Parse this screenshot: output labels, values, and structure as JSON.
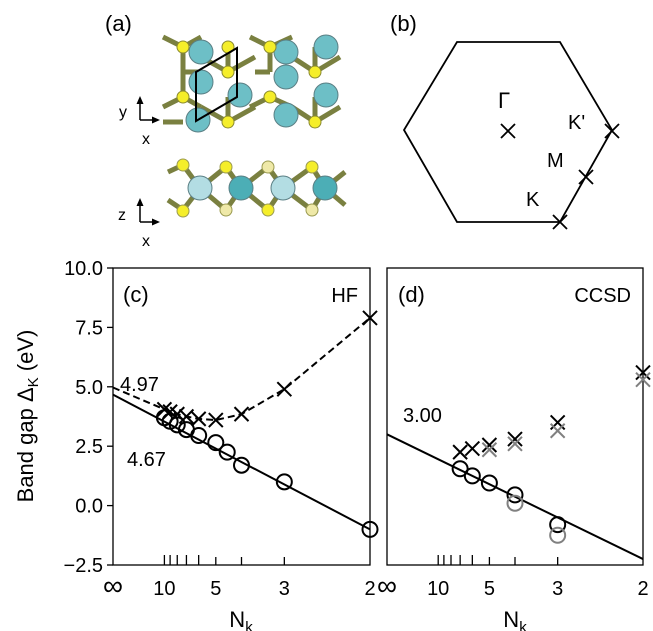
{
  "panels": {
    "a": {
      "label": "(a)",
      "axes_top": {
        "v": "y",
        "h": "x"
      },
      "axes_bottom": {
        "v": "z",
        "h": "x"
      },
      "colors": {
        "bond": "#7a8040",
        "s": "#f5ee2a",
        "s_light": "#efe9a8",
        "teal": "#6dbfc6",
        "teal_light": "#b3dde3",
        "teal_dark": "#4caeb6"
      }
    },
    "b": {
      "label": "(b)",
      "points": {
        "gamma": "Γ",
        "kprime": "K'",
        "m": "M",
        "k": "K"
      }
    }
  },
  "chart_data": [
    {
      "panel": "(c)",
      "type": "scatter",
      "title": "HF",
      "ylabel": "Band gap Δ",
      "ylabel_sub": "K",
      "ylabel_unit": " (eV)",
      "xlabel": "N",
      "xlabel_sub": "k",
      "x_scale": "reciprocal",
      "xlim": [
        "∞",
        2
      ],
      "ylim": [
        -2.5,
        10.0
      ],
      "xtick_labels": [
        "∞",
        "10",
        "5",
        "3",
        "2"
      ],
      "ytick_labels": [
        "10.0",
        "7.5",
        "5.0",
        "2.5",
        "0.0",
        "−2.5"
      ],
      "series": [
        {
          "marker": "x",
          "color": "#000000",
          "points": [
            [
              10,
              4.05
            ],
            [
              9,
              3.95
            ],
            [
              8,
              3.85
            ],
            [
              7,
              3.75
            ],
            [
              6,
              3.65
            ],
            [
              5,
              3.6
            ],
            [
              4,
              3.85
            ],
            [
              3,
              4.9
            ],
            [
              2,
              7.9
            ]
          ]
        },
        {
          "marker": "o",
          "color": "#000000",
          "points": [
            [
              10,
              3.7
            ],
            [
              9,
              3.55
            ],
            [
              8,
              3.4
            ],
            [
              7,
              3.2
            ],
            [
              6,
              2.95
            ],
            [
              5,
              2.65
            ],
            [
              4.5,
              2.25
            ],
            [
              4,
              1.7
            ],
            [
              3,
              1.0
            ],
            [
              2,
              -1.0
            ]
          ]
        }
      ],
      "fits": [
        {
          "style": "dashed",
          "from": 4.97,
          "x": [
            10,
            9,
            8,
            7,
            6,
            5,
            4,
            3,
            2
          ],
          "y": [
            4.05,
            3.95,
            3.85,
            3.75,
            3.65,
            3.6,
            3.85,
            4.9,
            7.9
          ]
        },
        {
          "style": "solid",
          "from": 4.67,
          "to_x": 2,
          "to_y": -1.0
        }
      ],
      "annotations": [
        "4.97",
        "4.67"
      ]
    },
    {
      "panel": "(d)",
      "type": "scatter",
      "title": "CCSD",
      "xlabel": "N",
      "xlabel_sub": "k",
      "x_scale": "reciprocal",
      "xlim": [
        "∞",
        2
      ],
      "ylim": [
        -2.5,
        10.0
      ],
      "xtick_labels": [
        "∞",
        "10",
        "5",
        "3",
        "2"
      ],
      "series": [
        {
          "marker": "x",
          "color": "#000000",
          "points": [
            [
              7,
              2.25
            ],
            [
              6,
              2.4
            ],
            [
              5,
              2.55
            ],
            [
              4,
              2.8
            ],
            [
              3,
              3.5
            ],
            [
              2,
              5.6
            ]
          ]
        },
        {
          "marker": "x",
          "color": "#808080",
          "points": [
            [
              5,
              2.35
            ],
            [
              4,
              2.6
            ],
            [
              3,
              3.15
            ],
            [
              2,
              5.3
            ]
          ]
        },
        {
          "marker": "o",
          "color": "#000000",
          "points": [
            [
              7,
              1.55
            ],
            [
              6,
              1.25
            ],
            [
              5,
              0.95
            ],
            [
              4,
              0.45
            ],
            [
              3,
              -0.8
            ]
          ]
        },
        {
          "marker": "o",
          "color": "#808080",
          "points": [
            [
              4,
              0.1
            ],
            [
              3,
              -1.25
            ]
          ]
        }
      ],
      "fits": [
        {
          "style": "solid",
          "from": 3.0,
          "to_x": 2,
          "to_y": -2.25
        }
      ],
      "annotations": [
        "3.00"
      ]
    }
  ]
}
